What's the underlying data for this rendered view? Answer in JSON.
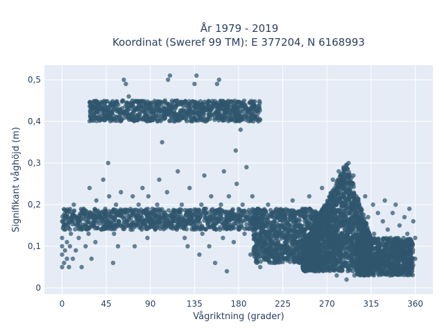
{
  "chart_data": {
    "type": "scatter",
    "title_lines": [
      "År 1979 - 2019",
      "Koordinat (Sweref 99 TM): E 377204, N 6168993"
    ],
    "xlabel": "Vågriktning (grader)",
    "ylabel": "Signifikant våghöjd (m)",
    "xlim": [
      -18,
      378
    ],
    "ylim": [
      -0.015,
      0.535
    ],
    "x_ticks": [
      0,
      45,
      90,
      135,
      180,
      225,
      270,
      315,
      360
    ],
    "x_tick_labels": [
      "0",
      "45",
      "90",
      "135",
      "180",
      "225",
      "270",
      "315",
      "360"
    ],
    "y_ticks": [
      0,
      0.1,
      0.2,
      0.3,
      0.4,
      0.5
    ],
    "y_tick_labels": [
      "0",
      "0,1",
      "0,2",
      "0,3",
      "0,4",
      "0,5"
    ],
    "grid": true,
    "legend": false,
    "colors": {
      "marker": "#2f566e",
      "plot_bg": "#e5ecf6",
      "grid": "#ffffff",
      "text": "#2a3f5f"
    },
    "series": [
      {
        "points": [
          [
            0,
            0.05
          ],
          [
            0,
            0.08
          ],
          [
            0,
            0.1
          ],
          [
            0,
            0.12
          ],
          [
            0,
            0.16
          ],
          [
            2,
            0.06
          ],
          [
            3,
            0.09
          ],
          [
            4,
            0.15
          ],
          [
            5,
            0.07
          ],
          [
            5,
            0.11
          ],
          [
            6,
            0.18
          ],
          [
            7,
            0.05
          ],
          [
            8,
            0.1
          ],
          [
            9,
            0.13
          ],
          [
            10,
            0.16
          ],
          [
            11,
            0.07
          ],
          [
            12,
            0.2
          ],
          [
            14,
            0.09
          ],
          [
            15,
            0.15
          ],
          [
            17,
            0.12
          ],
          [
            18,
            0.17
          ],
          [
            20,
            0.05
          ],
          [
            20,
            0.14
          ],
          [
            22,
            0.19
          ],
          [
            24,
            0.1
          ],
          [
            25,
            0.16
          ],
          [
            27,
            0.13
          ],
          [
            28,
            0.24
          ],
          [
            30,
            0.07
          ],
          [
            30,
            0.18
          ],
          [
            32,
            0.15
          ],
          [
            34,
            0.11
          ],
          [
            35,
            0.21
          ],
          [
            37,
            0.17
          ],
          [
            40,
            0.14
          ],
          [
            42,
            0.26
          ],
          [
            44,
            0.19
          ],
          [
            45,
            0.15
          ],
          [
            47,
            0.3
          ],
          [
            48,
            0.22
          ],
          [
            50,
            0.17
          ],
          [
            52,
            0.06
          ],
          [
            53,
            0.13
          ],
          [
            55,
            0.2
          ],
          [
            57,
            0.1
          ],
          [
            58,
            0.16
          ],
          [
            60,
            0.23
          ],
          [
            62,
            0.15
          ],
          [
            63,
            0.5
          ],
          [
            65,
            0.49
          ],
          [
            66,
            0.18
          ],
          [
            68,
            0.46
          ],
          [
            70,
            0.14
          ],
          [
            72,
            0.22
          ],
          [
            74,
            0.1
          ],
          [
            75,
            0.17
          ],
          [
            78,
            0.2
          ],
          [
            80,
            0.15
          ],
          [
            82,
            0.24
          ],
          [
            85,
            0.18
          ],
          [
            87,
            0.12
          ],
          [
            88,
            0.22
          ],
          [
            90,
            0.16
          ],
          [
            92,
            0.19
          ],
          [
            95,
            0.14
          ],
          [
            97,
            0.2
          ],
          [
            99,
            0.26
          ],
          [
            100,
            0.17
          ],
          [
            102,
            0.35
          ],
          [
            104,
            0.15
          ],
          [
            105,
            0.45
          ],
          [
            107,
            0.23
          ],
          [
            108,
            0.5
          ],
          [
            110,
            0.51
          ],
          [
            112,
            0.18
          ],
          [
            115,
            0.4
          ],
          [
            117,
            0.14
          ],
          [
            118,
            0.28
          ],
          [
            120,
            0.16
          ],
          [
            122,
            0.2
          ],
          [
            125,
            0.12
          ],
          [
            127,
            0.18
          ],
          [
            128,
            0.1
          ],
          [
            130,
            0.24
          ],
          [
            132,
            0.17
          ],
          [
            134,
            0.42
          ],
          [
            135,
            0.49
          ],
          [
            137,
            0.51
          ],
          [
            138,
            0.16
          ],
          [
            140,
            0.08
          ],
          [
            142,
            0.2
          ],
          [
            143,
            0.13
          ],
          [
            145,
            0.27
          ],
          [
            147,
            0.18
          ],
          [
            150,
            0.1
          ],
          [
            152,
            0.22
          ],
          [
            155,
            0.15
          ],
          [
            156,
            0.06
          ],
          [
            158,
            0.49
          ],
          [
            160,
            0.5
          ],
          [
            162,
            0.2
          ],
          [
            164,
            0.12
          ],
          [
            165,
            0.28
          ],
          [
            167,
            0.16
          ],
          [
            168,
            0.04
          ],
          [
            170,
            0.22
          ],
          [
            172,
            0.18
          ],
          [
            175,
            0.11
          ],
          [
            177,
            0.33
          ],
          [
            178,
            0.25
          ],
          [
            180,
            0.16
          ],
          [
            182,
            0.38
          ],
          [
            184,
            0.2
          ],
          [
            186,
            0.13
          ],
          [
            188,
            0.29
          ],
          [
            190,
            0.17
          ],
          [
            192,
            0.08
          ],
          [
            194,
            0.22
          ],
          [
            196,
            0.16
          ],
          [
            198,
            0.11
          ],
          [
            200,
            0.19
          ],
          [
            202,
            0.05
          ],
          [
            205,
            0.14
          ],
          [
            207,
            0.09
          ],
          [
            210,
            0.2
          ],
          [
            212,
            0.12
          ],
          [
            215,
            0.17
          ],
          [
            217,
            0.07
          ],
          [
            220,
            0.15
          ],
          [
            222,
            0.1
          ],
          [
            225,
            0.18
          ],
          [
            227,
            0.12
          ],
          [
            230,
            0.16
          ],
          [
            232,
            0.08
          ],
          [
            235,
            0.21
          ],
          [
            237,
            0.11
          ],
          [
            240,
            0.15
          ],
          [
            242,
            0.07
          ],
          [
            245,
            0.19
          ],
          [
            247,
            0.13
          ],
          [
            250,
            0.1
          ],
          [
            252,
            0.22
          ],
          [
            255,
            0.16
          ],
          [
            257,
            0.06
          ],
          [
            260,
            0.18
          ],
          [
            262,
            0.12
          ],
          [
            265,
            0.24
          ],
          [
            267,
            0.09
          ],
          [
            270,
            0.2
          ],
          [
            272,
            0.05
          ],
          [
            274,
            0.15
          ],
          [
            276,
            0.26
          ],
          [
            278,
            0.11
          ],
          [
            280,
            0.03
          ],
          [
            282,
            0.28
          ],
          [
            283,
            0.18
          ],
          [
            285,
            0.08
          ],
          [
            287,
            0.29
          ],
          [
            288,
            0.14
          ],
          [
            290,
            0.02
          ],
          [
            292,
            0.3
          ],
          [
            294,
            0.2
          ],
          [
            295,
            0.1
          ],
          [
            297,
            0.27
          ],
          [
            298,
            0.03
          ],
          [
            300,
            0.22
          ],
          [
            302,
            0.12
          ],
          [
            304,
            0.19
          ],
          [
            305,
            0.04
          ],
          [
            307,
            0.15
          ],
          [
            309,
            0.22
          ],
          [
            310,
            0.08
          ],
          [
            312,
            0.17
          ],
          [
            314,
            0.11
          ],
          [
            315,
            0.05
          ],
          [
            317,
            0.2
          ],
          [
            318,
            0.13
          ],
          [
            320,
            0.08
          ],
          [
            322,
            0.18
          ],
          [
            324,
            0.1
          ],
          [
            325,
            0.04
          ],
          [
            327,
            0.16
          ],
          [
            329,
            0.21
          ],
          [
            330,
            0.07
          ],
          [
            332,
            0.14
          ],
          [
            334,
            0.03
          ],
          [
            335,
            0.12
          ],
          [
            337,
            0.18
          ],
          [
            339,
            0.09
          ],
          [
            340,
            0.2
          ],
          [
            342,
            0.06
          ],
          [
            344,
            0.15
          ],
          [
            345,
            0.11
          ],
          [
            347,
            0.04
          ],
          [
            349,
            0.17
          ],
          [
            350,
            0.08
          ],
          [
            352,
            0.13
          ],
          [
            354,
            0.19
          ],
          [
            355,
            0.06
          ],
          [
            357,
            0.1
          ],
          [
            358,
            0.16
          ],
          [
            360,
            0.07
          ],
          [
            360,
            0.12
          ]
        ],
        "clusters": [
          {
            "x_range": [
              0,
              205
            ],
            "y_range": [
              0.14,
              0.19
            ],
            "density": "high"
          },
          {
            "x_range": [
              28,
              202
            ],
            "y_range": [
              0.4,
              0.45
            ],
            "density": "high"
          },
          {
            "x_range": [
              195,
              260
            ],
            "y_range": [
              0.06,
              0.19
            ],
            "density": "high"
          },
          {
            "x_range": [
              245,
              315
            ],
            "y_range": [
              0.04,
              0.25
            ],
            "density": "very-high"
          },
          {
            "x_range": [
              300,
              358
            ],
            "y_range": [
              0.03,
              0.12
            ],
            "density": "high"
          }
        ]
      }
    ]
  }
}
